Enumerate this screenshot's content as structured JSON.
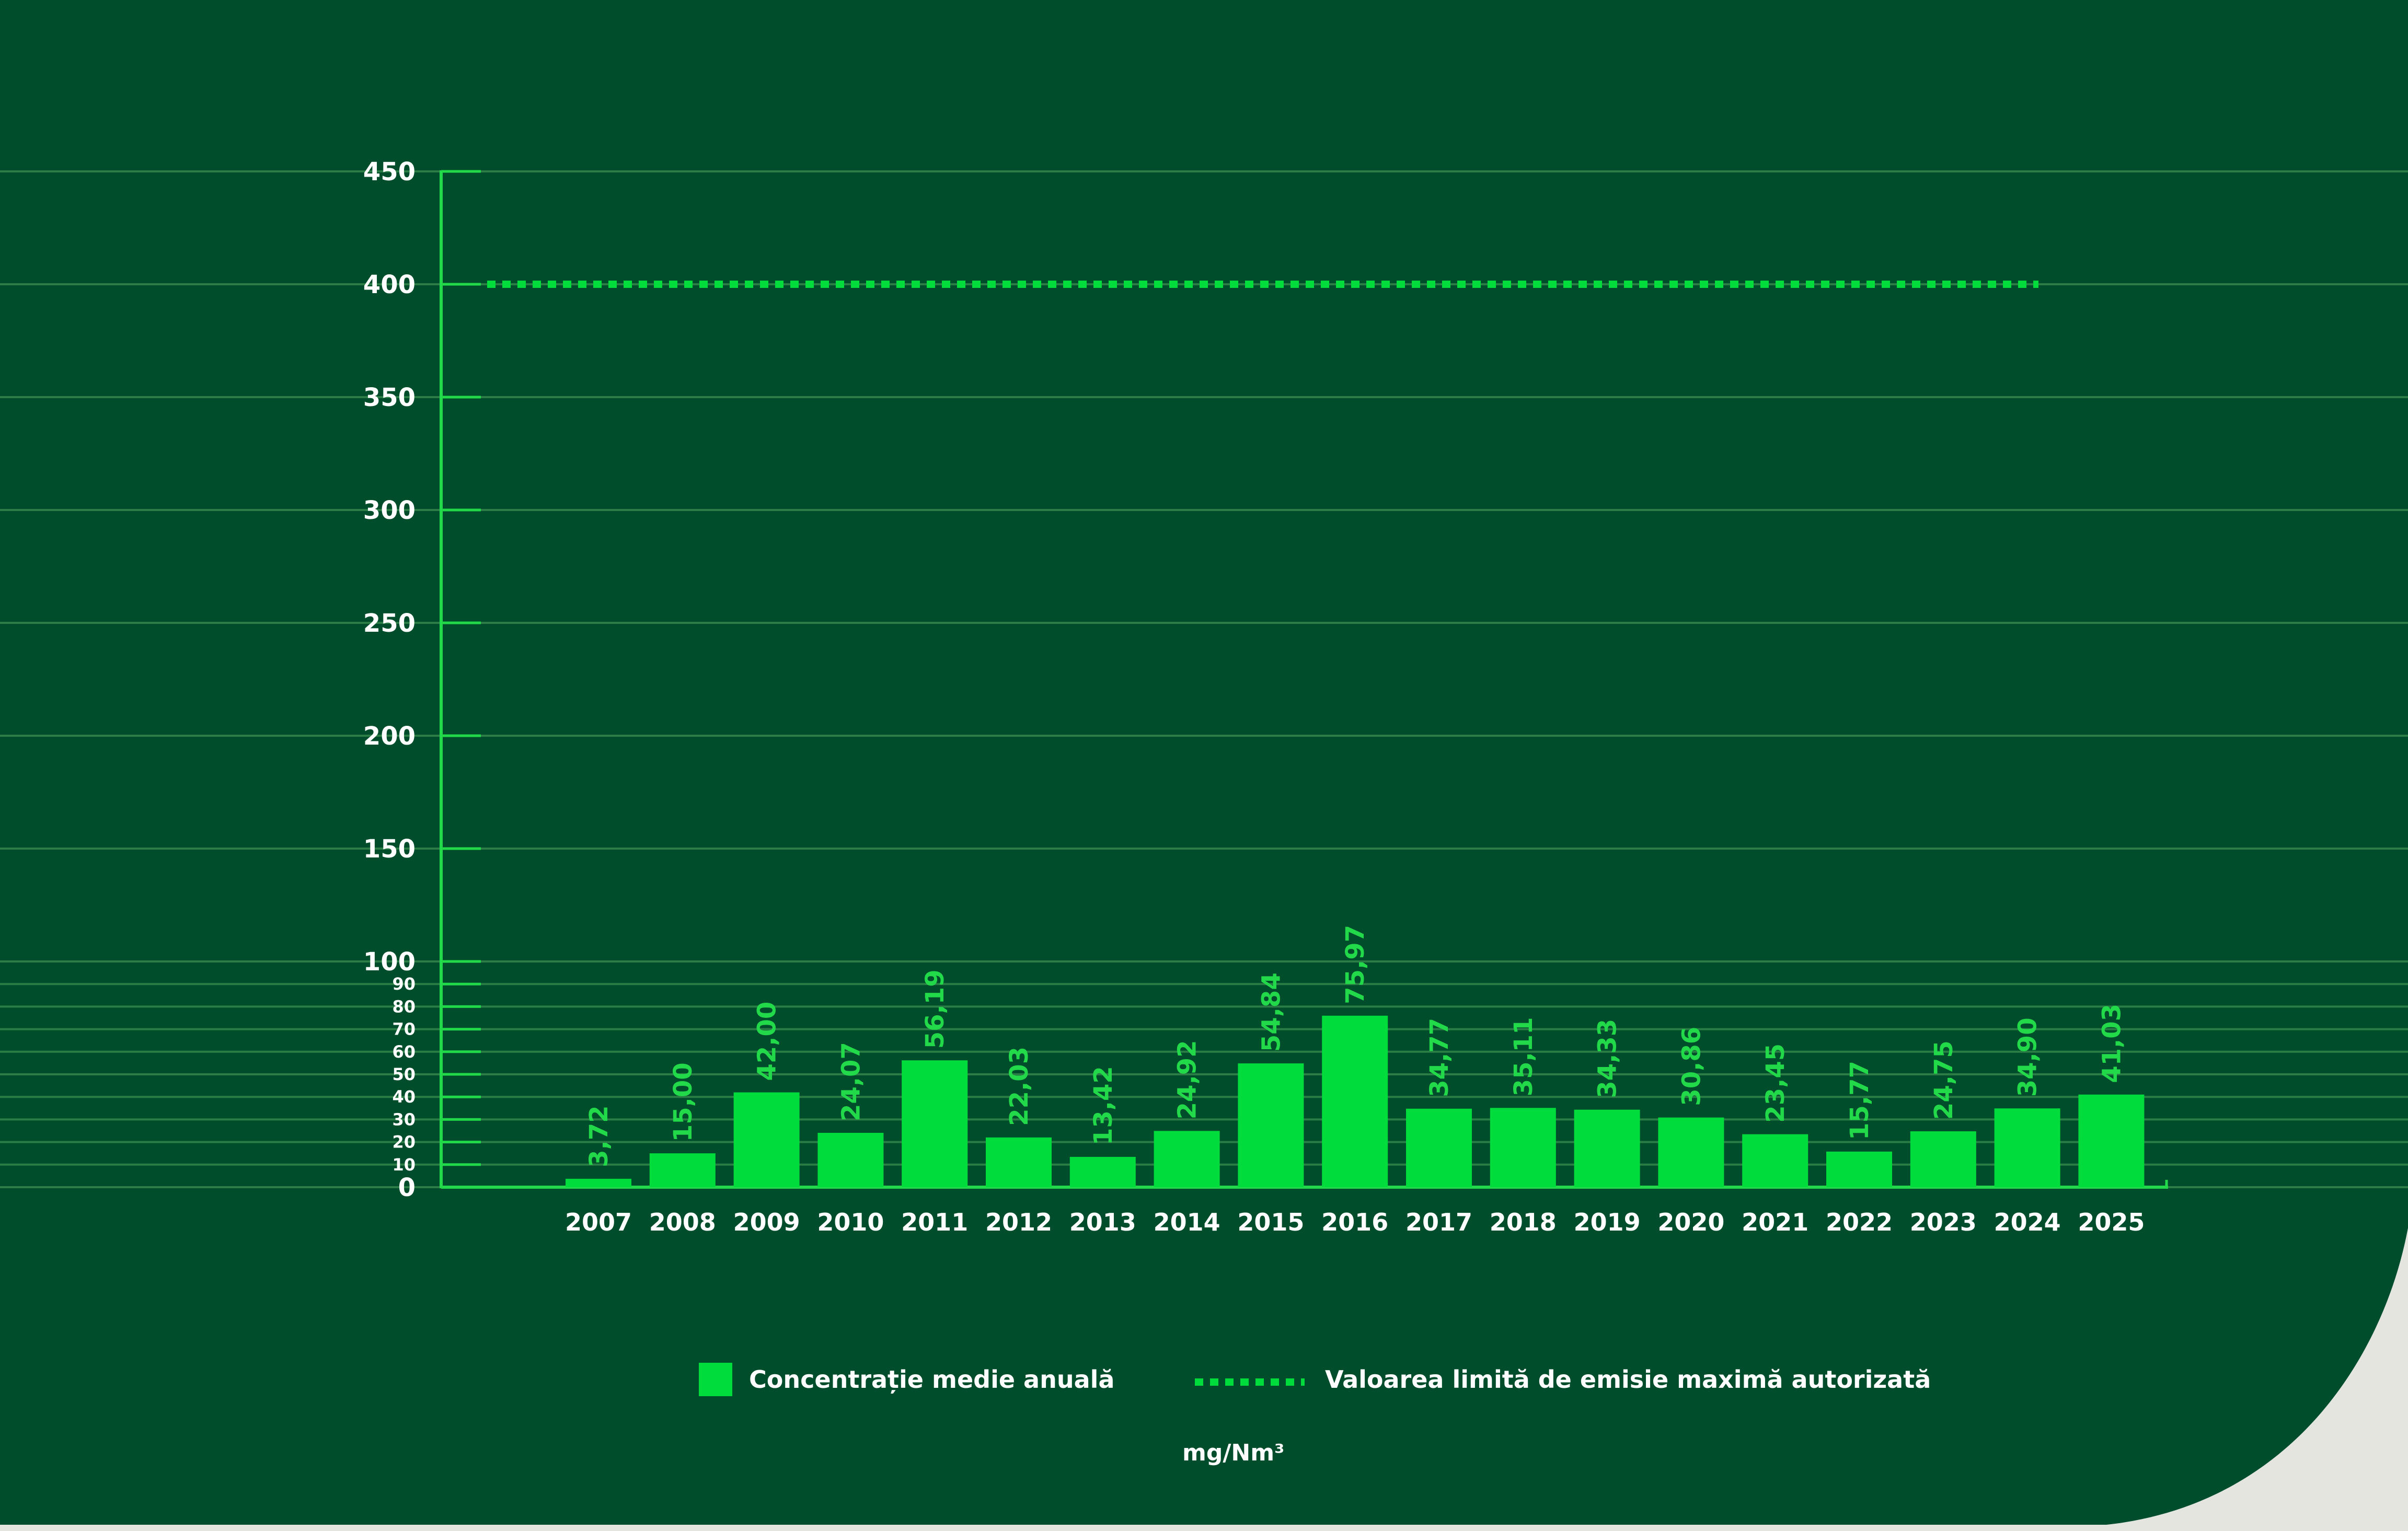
{
  "chart_data": {
    "type": "bar",
    "categories": [
      "2007",
      "2008",
      "2009",
      "2010",
      "2011",
      "2012",
      "2013",
      "2014",
      "2015",
      "2016",
      "2017",
      "2018",
      "2019",
      "2020",
      "2021",
      "2022",
      "2023",
      "2024",
      "2025"
    ],
    "series": [
      {
        "name": "Concentrație medie anuală",
        "values": [
          3.72,
          15.0,
          42.0,
          24.07,
          56.19,
          22.03,
          13.42,
          24.92,
          54.84,
          75.97,
          34.77,
          35.11,
          34.33,
          30.86,
          23.45,
          15.77,
          24.75,
          34.9,
          41.03
        ],
        "labels": [
          "3,72",
          "15,00",
          "42,00",
          "24,07",
          "56,19",
          "22,03",
          "13,42",
          "24,92",
          "54,84",
          "75,97",
          "34,77",
          "35,11",
          "34,33",
          "30,86",
          "23,45",
          "15,77",
          "24,75",
          "34,90",
          "41,03"
        ]
      }
    ],
    "reference_line": {
      "name": "Valoarea limită de emisie maximă autorizată",
      "value": 400,
      "style": "dotted"
    },
    "y_ticks_major": [
      0,
      100,
      150,
      200,
      250,
      300,
      350,
      400,
      450
    ],
    "y_ticks_minor": [
      10,
      20,
      30,
      40,
      50,
      60,
      70,
      80,
      90
    ],
    "y_scale": "piecewise linear: 0–100 expanded, 100–450 compressed",
    "ylim": [
      0,
      450
    ],
    "unit": "mg/Nm³",
    "title": "",
    "xlabel": "",
    "ylabel": "",
    "grid": true,
    "legend_position": "bottom",
    "colors": {
      "background": "#004d2c",
      "bar": "#00dc3c",
      "axis": "#22d94a",
      "grid": "#2a7d45",
      "text": "#ffffff",
      "label": "#22d94a"
    }
  }
}
